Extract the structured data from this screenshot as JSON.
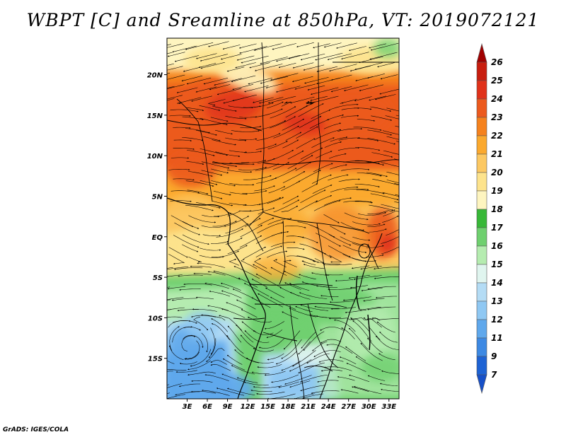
{
  "title": "WBPT [C] and Sreamline at 850hPa, VT: 2019072121",
  "footer": "GrADS: IGES/COLA",
  "map": {
    "variable": "WBPT",
    "units": "C",
    "level": "850hPa",
    "valid_time": "2019072121",
    "x_axis": {
      "ticks": [
        "3E",
        "6E",
        "9E",
        "12E",
        "15E",
        "18E",
        "21E",
        "24E",
        "27E",
        "30E",
        "33E"
      ],
      "lon_values": [
        3,
        6,
        9,
        12,
        15,
        18,
        21,
        24,
        27,
        30,
        33
      ],
      "range": [
        0,
        34.5
      ]
    },
    "y_axis": {
      "ticks": [
        "20N",
        "15N",
        "10N",
        "5N",
        "EQ",
        "5S",
        "10S",
        "15S"
      ],
      "lat_values": [
        20,
        15,
        10,
        5,
        0,
        -5,
        -10,
        -15
      ],
      "range": [
        -20,
        24.5
      ]
    },
    "field_regions": [
      {
        "name": "north-warm-band",
        "dominant_value_range": "19-25"
      },
      {
        "name": "central-africa",
        "dominant_value_range": "20-24"
      },
      {
        "name": "southern-africa",
        "dominant_value_range": "12-18"
      }
    ]
  },
  "colorbar": {
    "levels": [
      "26",
      "25",
      "24",
      "23",
      "22",
      "21",
      "20",
      "19",
      "18",
      "17",
      "16",
      "15",
      "14",
      "13",
      "12",
      "11",
      "9",
      "7"
    ],
    "colors": [
      "#a00000",
      "#c81e0f",
      "#e0321a",
      "#ec5a1e",
      "#f5821e",
      "#fba92e",
      "#fcc862",
      "#fde38c",
      "#fef5c0",
      "#38b838",
      "#6fd06f",
      "#b5ecb0",
      "#e0f5ef",
      "#b4dcf5",
      "#8fc8f3",
      "#5fa8ec",
      "#3d89e3",
      "#1e63d4",
      "#1650c8"
    ]
  },
  "palette": {
    "coast": "#000000",
    "streamline": "#000000"
  }
}
